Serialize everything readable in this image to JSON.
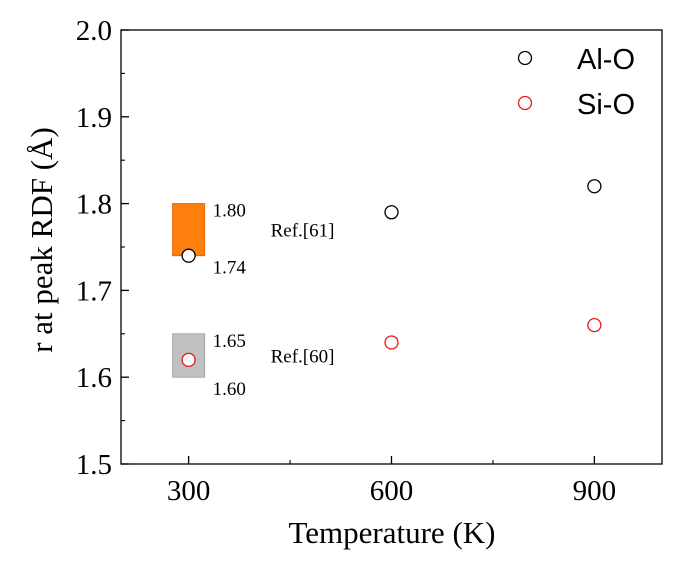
{
  "chart_data": {
    "type": "scatter",
    "xlabel": "Temperature (K)",
    "ylabel": "r at peak RDF (Å)",
    "xlim": [
      200,
      1000
    ],
    "ylim": [
      1.5,
      2.0
    ],
    "xticks": [
      300,
      600,
      900
    ],
    "yticks": [
      1.5,
      1.6,
      1.7,
      1.8,
      1.9,
      2.0
    ],
    "xtick_labels": [
      "300",
      "600",
      "900"
    ],
    "ytick_labels": [
      "1.5",
      "1.6",
      "1.7",
      "1.8",
      "1.9",
      "2.0"
    ],
    "grid": false,
    "legend_position": "top-right",
    "series": [
      {
        "name": "Al-O",
        "color": "#000000",
        "x": [
          300,
          600,
          900
        ],
        "y": [
          1.74,
          1.79,
          1.82
        ]
      },
      {
        "name": "Si-O",
        "color": "#e41a1c",
        "x": [
          300,
          600,
          900
        ],
        "y": [
          1.62,
          1.64,
          1.66
        ]
      }
    ],
    "reference_bands": [
      {
        "label": "Ref.[61]",
        "x": 300,
        "y_low": 1.74,
        "y_high": 1.8,
        "low_label": "1.74",
        "high_label": "1.80",
        "color": "#ff7f0e"
      },
      {
        "label": "Ref.[60]",
        "x": 300,
        "y_low": 1.6,
        "y_high": 1.65,
        "low_label": "1.60",
        "high_label": "1.65",
        "color": "#c0c0c0"
      }
    ]
  }
}
